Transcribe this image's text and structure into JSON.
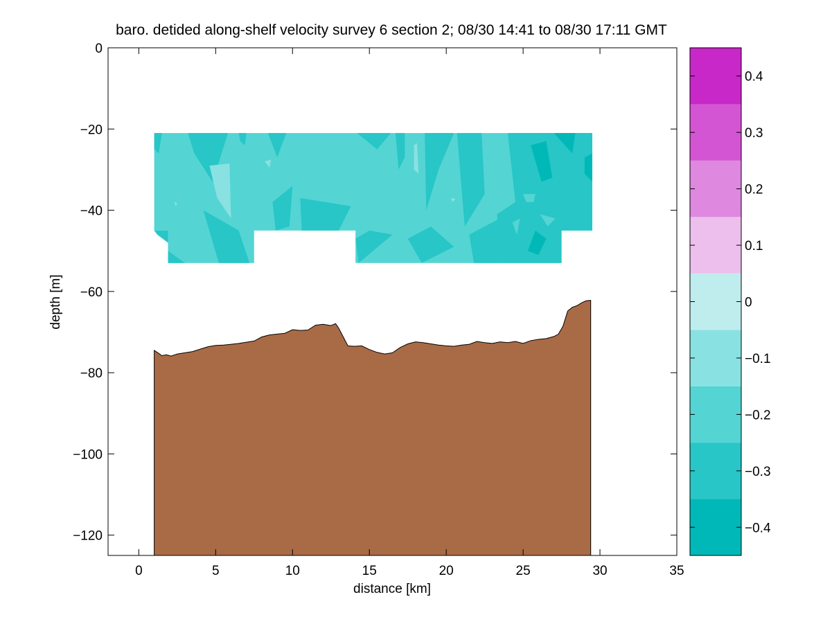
{
  "chart_data": {
    "type": "heatmap",
    "title": "baro. detided along-shelf velocity survey 6 section 2; 08/30 14:41 to 08/30 17:11 GMT",
    "xlabel": "distance [km]",
    "ylabel": "depth [m]",
    "xlim": [
      -2,
      35
    ],
    "ylim": [
      -125,
      0
    ],
    "xticks": [
      0,
      5,
      10,
      15,
      20,
      25,
      30,
      35
    ],
    "yticks": [
      0,
      -20,
      -40,
      -60,
      -80,
      -100,
      -120
    ],
    "grid": false,
    "colorbar": {
      "placement": "right",
      "range": [
        -0.45,
        0.45
      ],
      "levels": [
        -0.45,
        -0.35,
        -0.25,
        -0.15,
        -0.05,
        0.05,
        0.15,
        0.25,
        0.35,
        0.45
      ],
      "colors": [
        "#00b8b8",
        "#28c6c6",
        "#55d4d4",
        "#8ae1e1",
        "#bfeded",
        "#ecbfec",
        "#df88df",
        "#d355d3",
        "#c828c8",
        "#bd00bd"
      ],
      "ticks": [
        -0.4,
        -0.3,
        -0.2,
        -0.1,
        0,
        0.1,
        0.2,
        0.3,
        0.4
      ],
      "tick_labels": [
        "−0.4",
        "−0.3",
        "−0.2",
        "−0.1",
        "0",
        "0.1",
        "0.2",
        "0.3",
        "0.4"
      ]
    },
    "velocity_field": {
      "background_value": -0.2,
      "outline": [
        [
          1,
          -21
        ],
        [
          29.5,
          -21
        ],
        [
          29.5,
          -45
        ],
        [
          27.5,
          -45
        ],
        [
          27.5,
          -53
        ],
        [
          14.1,
          -53
        ],
        [
          14.1,
          -45
        ],
        [
          7.5,
          -45
        ],
        [
          7.5,
          -53
        ],
        [
          1.9,
          -53
        ],
        [
          1.9,
          -45
        ],
        [
          1,
          -45
        ]
      ],
      "patches": [
        {
          "value": -0.3,
          "points": [
            [
              1,
              -21
            ],
            [
              1.5,
              -21
            ],
            [
              1.3,
              -26
            ],
            [
              1,
              -25
            ]
          ]
        },
        {
          "value": -0.3,
          "points": [
            [
              3.2,
              -21
            ],
            [
              5.8,
              -21
            ],
            [
              4.8,
              -33
            ],
            [
              3.6,
              -26
            ]
          ]
        },
        {
          "value": -0.3,
          "points": [
            [
              6.5,
              -21
            ],
            [
              7,
              -21
            ],
            [
              6.9,
              -24
            ],
            [
              6.6,
              -23
            ]
          ]
        },
        {
          "value": -0.3,
          "points": [
            [
              8.4,
              -21
            ],
            [
              9.6,
              -21
            ],
            [
              9,
              -27
            ]
          ]
        },
        {
          "value": -0.3,
          "points": [
            [
              4.2,
              -40
            ],
            [
              6.5,
              -45
            ],
            [
              7.2,
              -53
            ],
            [
              5.2,
              -53
            ]
          ]
        },
        {
          "value": -0.3,
          "points": [
            [
              1,
              -45
            ],
            [
              1.9,
              -45
            ],
            [
              1.9,
              -48
            ],
            [
              1.2,
              -46
            ]
          ]
        },
        {
          "value": -0.3,
          "points": [
            [
              1.9,
              -50
            ],
            [
              3,
              -53
            ],
            [
              1.9,
              -53
            ]
          ]
        },
        {
          "value": -0.3,
          "points": [
            [
              8.7,
              -38
            ],
            [
              10,
              -34
            ],
            [
              9.8,
              -44
            ],
            [
              8.9,
              -45
            ]
          ]
        },
        {
          "value": -0.3,
          "points": [
            [
              10.5,
              -37
            ],
            [
              13.8,
              -39
            ],
            [
              13,
              -45
            ],
            [
              10.6,
              -45
            ]
          ]
        },
        {
          "value": -0.3,
          "points": [
            [
              14.1,
              -47
            ],
            [
              15,
              -45
            ],
            [
              16.5,
              -46
            ],
            [
              14.3,
              -53
            ]
          ]
        },
        {
          "value": -0.3,
          "points": [
            [
              14.2,
              -21
            ],
            [
              16.4,
              -21
            ],
            [
              15.5,
              -25
            ]
          ]
        },
        {
          "value": -0.3,
          "points": [
            [
              16.7,
              -21
            ],
            [
              17.3,
              -21
            ],
            [
              17.3,
              -27
            ],
            [
              16.9,
              -30
            ]
          ]
        },
        {
          "value": -0.3,
          "points": [
            [
              18.6,
              -21
            ],
            [
              20.5,
              -21
            ],
            [
              19.5,
              -30
            ],
            [
              18.7,
              -40
            ]
          ]
        },
        {
          "value": -0.3,
          "points": [
            [
              20.7,
              -21
            ],
            [
              22.3,
              -21
            ],
            [
              22.5,
              -36
            ],
            [
              21.2,
              -44
            ]
          ]
        },
        {
          "value": -0.3,
          "points": [
            [
              24,
              -21
            ],
            [
              29.5,
              -21
            ],
            [
              29.5,
              -45
            ],
            [
              27.5,
              -45
            ],
            [
              27.5,
              -53
            ],
            [
              23.5,
              -53
            ],
            [
              23.3,
              -41
            ],
            [
              24.5,
              -38
            ]
          ]
        },
        {
          "value": -0.3,
          "points": [
            [
              17.5,
              -47
            ],
            [
              19,
              -44
            ],
            [
              20.5,
              -49
            ],
            [
              18.4,
              -53
            ]
          ]
        },
        {
          "value": -0.3,
          "points": [
            [
              21.5,
              -46
            ],
            [
              23.5,
              -42
            ],
            [
              23.5,
              -53
            ],
            [
              21.8,
              -53
            ]
          ]
        },
        {
          "value": -0.4,
          "points": [
            [
              27,
              -21
            ],
            [
              28.4,
              -21
            ],
            [
              28.2,
              -26
            ]
          ]
        },
        {
          "value": -0.4,
          "points": [
            [
              25.5,
              -24
            ],
            [
              26.5,
              -23
            ],
            [
              26.9,
              -32
            ],
            [
              26.2,
              -33
            ]
          ]
        },
        {
          "value": -0.4,
          "points": [
            [
              29,
              -27
            ],
            [
              29.5,
              -26
            ],
            [
              29.5,
              -33
            ],
            [
              29,
              -31
            ]
          ]
        },
        {
          "value": -0.4,
          "points": [
            [
              25.8,
              -45
            ],
            [
              26.5,
              -47
            ],
            [
              26,
              -51
            ],
            [
              25.3,
              -50
            ]
          ]
        },
        {
          "value": -0.2,
          "points": [
            [
              25,
              -36
            ],
            [
              25.8,
              -36
            ],
            [
              25.7,
              -38
            ],
            [
              25.2,
              -38
            ]
          ]
        },
        {
          "value": -0.2,
          "points": [
            [
              26.1,
              -41
            ],
            [
              27.1,
              -42
            ],
            [
              26.6,
              -44
            ]
          ]
        },
        {
          "value": -0.2,
          "points": [
            [
              24.3,
              -43
            ],
            [
              24.8,
              -42
            ],
            [
              24.6,
              -46
            ]
          ]
        },
        {
          "value": -0.1,
          "points": [
            [
              4.6,
              -29
            ],
            [
              5.9,
              -28.5
            ],
            [
              6,
              -42
            ],
            [
              5.1,
              -37
            ]
          ]
        },
        {
          "value": -0.1,
          "points": [
            [
              8.2,
              -28
            ],
            [
              8.6,
              -27.5
            ],
            [
              8.5,
              -29.5
            ]
          ]
        },
        {
          "value": -0.1,
          "points": [
            [
              17.9,
              -24
            ],
            [
              18.1,
              -23.5
            ],
            [
              18.2,
              -31
            ],
            [
              17.9,
              -30
            ]
          ]
        },
        {
          "value": -0.1,
          "points": [
            [
              2.3,
              -38
            ],
            [
              2.5,
              -38.2
            ],
            [
              2.4,
              -39
            ]
          ]
        },
        {
          "value": -0.1,
          "points": [
            [
              20.3,
              -37
            ],
            [
              20.6,
              -37.2
            ],
            [
              20.4,
              -38
            ]
          ]
        }
      ]
    },
    "bottom_profile": {
      "fill_color": "#a86b46",
      "x": [
        1,
        1.2,
        1.5,
        1.8,
        2.1,
        2.5,
        3,
        3.5,
        4,
        4.5,
        5,
        5.5,
        6,
        6.5,
        7,
        7.5,
        8,
        8.5,
        9,
        9.5,
        10,
        10.5,
        11,
        11.5,
        12,
        12.5,
        12.8,
        13,
        13.3,
        13.6,
        14,
        14.5,
        15,
        15.5,
        16,
        16.5,
        17,
        17.5,
        18,
        18.5,
        19,
        19.5,
        20,
        20.5,
        21,
        21.5,
        22,
        22.5,
        23,
        23.5,
        24,
        24.5,
        25,
        25.5,
        26,
        26.5,
        27,
        27.3,
        27.6,
        27.9,
        28.2,
        28.5,
        28.8,
        29.1,
        29.4
      ],
      "y": [
        -74.5,
        -75,
        -75.8,
        -75.6,
        -75.9,
        -75.4,
        -75.1,
        -74.8,
        -74.2,
        -73.6,
        -73.3,
        -73.2,
        -73,
        -72.8,
        -72.5,
        -72.2,
        -71.2,
        -70.7,
        -70.5,
        -70.3,
        -69.4,
        -69.6,
        -69.5,
        -68.3,
        -68.1,
        -68.4,
        -67.9,
        -69,
        -71.2,
        -73.4,
        -73.5,
        -73.4,
        -74.3,
        -75,
        -75.4,
        -75.1,
        -73.8,
        -72.9,
        -72.4,
        -72.6,
        -72.9,
        -73.2,
        -73.4,
        -73.5,
        -73.2,
        -73,
        -72.3,
        -72.6,
        -72.8,
        -72.4,
        -72.6,
        -72.3,
        -72.8,
        -72.1,
        -71.8,
        -71.6,
        -71.1,
        -70.5,
        -68.5,
        -64.8,
        -63.9,
        -63.5,
        -62.8,
        -62.3,
        -62.2
      ]
    }
  }
}
